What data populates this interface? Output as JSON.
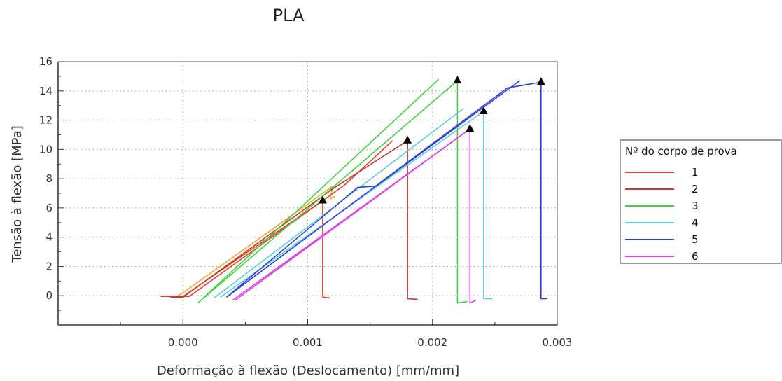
{
  "chart_data": {
    "type": "line",
    "title": "PLA",
    "xlabel": "Deformação à flexão (Deslocamento) [mm/mm]",
    "ylabel": "Tensão à flexão [MPa]",
    "xlim": [
      -0.001,
      0.003
    ],
    "ylim": [
      -2,
      16
    ],
    "x_ticks": [
      0.0,
      0.001,
      0.002,
      0.003
    ],
    "x_tick_labels": [
      "0.000",
      "0.001",
      "0.002",
      "0.003"
    ],
    "y_ticks": [
      0,
      2,
      4,
      6,
      8,
      10,
      12,
      14,
      16
    ],
    "y_tick_labels": [
      "0",
      "2",
      "4",
      "6",
      "8",
      "10",
      "12",
      "14",
      "16"
    ],
    "grid": true,
    "legend_title": "Nº do corpo de prova",
    "legend_position": "right",
    "series": [
      {
        "name": "1",
        "color": "#e8402a",
        "lines": [
          [
            [
              -0.00018,
              -0.05
            ],
            [
              5e-05,
              -0.05
            ],
            [
              0.0013,
              7.6
            ],
            [
              0.00168,
              10.6
            ]
          ],
          [
            [
              0.0,
              -0.05
            ],
            [
              0.00112,
              6.5
            ]
          ],
          [
            [
              0.00112,
              6.5
            ],
            [
              0.00112,
              -0.1
            ],
            [
              0.00118,
              -0.15
            ]
          ]
        ]
      },
      {
        "name": "2",
        "color": "#c03838",
        "lines": [
          [
            [
              -0.0001,
              -0.1
            ],
            [
              0.0,
              -0.1
            ],
            [
              0.0012,
              7.3
            ],
            [
              0.0018,
              10.6
            ]
          ],
          [
            [
              0.0018,
              10.6
            ],
            [
              0.0018,
              -0.2
            ],
            [
              0.00188,
              -0.25
            ]
          ]
        ]
      },
      {
        "name": "3",
        "color": "#3ad43a",
        "lines": [
          [
            [
              0.00012,
              -0.5
            ],
            [
              0.00205,
              14.8
            ]
          ],
          [
            [
              0.00016,
              -0.2
            ],
            [
              0.0022,
              14.7
            ]
          ],
          [
            [
              0.0022,
              14.7
            ],
            [
              0.0022,
              -0.5
            ],
            [
              0.00228,
              -0.4
            ]
          ]
        ]
      },
      {
        "name": "4",
        "color": "#58cfd8",
        "lines": [
          [
            [
              0.00025,
              -0.15
            ],
            [
              0.00225,
              12.8
            ]
          ],
          [
            [
              0.0003,
              -0.1
            ],
            [
              0.00241,
              12.6
            ]
          ],
          [
            [
              0.00241,
              12.6
            ],
            [
              0.00241,
              -0.2
            ],
            [
              0.00248,
              -0.2
            ]
          ]
        ]
      },
      {
        "name": "5",
        "color": "#2f3fd4",
        "lines": [
          [
            [
              0.00035,
              -0.1
            ],
            [
              0.0014,
              7.4
            ],
            [
              0.00155,
              7.5
            ],
            [
              0.0027,
              14.7
            ]
          ],
          [
            [
              0.00035,
              -0.1
            ],
            [
              0.0026,
              14.2
            ],
            [
              0.00287,
              14.6
            ]
          ],
          [
            [
              0.00287,
              14.6
            ],
            [
              0.00287,
              -0.2
            ],
            [
              0.00292,
              -0.2
            ]
          ]
        ]
      },
      {
        "name": "6",
        "color": "#e040e0",
        "lines": [
          [
            [
              0.0004,
              -0.3
            ],
            [
              0.0023,
              11.4
            ]
          ],
          [
            [
              0.00042,
              -0.3
            ],
            [
              0.0023,
              11.4
            ]
          ],
          [
            [
              0.0023,
              11.4
            ],
            [
              0.0023,
              -0.5
            ],
            [
              0.00235,
              -0.3
            ]
          ]
        ]
      }
    ],
    "extra_series": [
      {
        "color": "#f5a623",
        "lines": [
          [
            [
              -6e-05,
              -0.1
            ],
            [
              0.0,
              0.2
            ],
            [
              0.00112,
              7.0
            ],
            [
              0.0012,
              7.5
            ]
          ],
          [
            [
              0.0012,
              7.5
            ],
            [
              0.00118,
              6.6
            ],
            [
              0.00122,
              6.8
            ]
          ]
        ]
      }
    ],
    "break_points": [
      {
        "x": 0.00112,
        "y": 6.5
      },
      {
        "x": 0.0018,
        "y": 10.6
      },
      {
        "x": 0.0022,
        "y": 14.7
      },
      {
        "x": 0.00241,
        "y": 12.6
      },
      {
        "x": 0.0023,
        "y": 11.4
      },
      {
        "x": 0.00287,
        "y": 14.6
      }
    ]
  }
}
